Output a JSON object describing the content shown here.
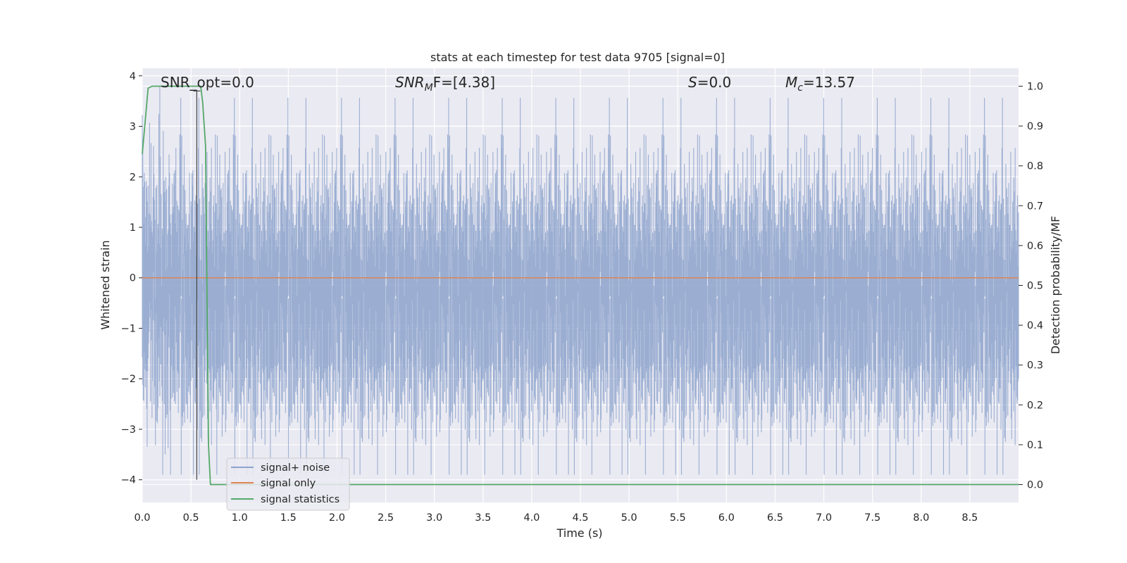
{
  "chart_data": {
    "type": "line",
    "title": "stats at each timestep for test data 9705 [signal=0]",
    "xlabel": "Time (s)",
    "ylabel": "Whitened strain",
    "y2label": "Detection probability/MF",
    "xlim": [
      0,
      9.0
    ],
    "ylim": [
      -4.45,
      4.15
    ],
    "y2lim": [
      -0.045,
      1.045
    ],
    "x_ticks": [
      "0.0",
      "0.5",
      "1.0",
      "1.5",
      "2.0",
      "2.5",
      "3.0",
      "3.5",
      "4.0",
      "4.5",
      "5.0",
      "5.5",
      "6.0",
      "6.5",
      "7.0",
      "7.5",
      "8.0",
      "8.5"
    ],
    "y_ticks": [
      "4",
      "3",
      "2",
      "1",
      "0",
      "−1",
      "−2",
      "−3",
      "−4"
    ],
    "y2_ticks": [
      "1.0",
      "0.9",
      "0.8",
      "0.7",
      "0.6",
      "0.5",
      "0.4",
      "0.3",
      "0.2",
      "0.1",
      "0.0"
    ],
    "grid": true,
    "legend_position": "lower-left",
    "annotations": {
      "snr_opt": "SNR_opt=0.0",
      "snr_mf_prefix": "SNR",
      "snr_mf_sub": "M",
      "snr_mf_suffix": "F=[4.38]",
      "s_prefix": "S",
      "s_suffix": "=0.0",
      "mc_prefix": "M",
      "mc_sub": "c",
      "mc_suffix": "=13.57"
    },
    "marker_line": {
      "x": 0.56,
      "y_top": 3.7,
      "y_bottom": -4.0
    },
    "series": [
      {
        "name": "signal+ noise",
        "color": "#8da3cd",
        "kind": "noise",
        "x_range": [
          0,
          9.0
        ],
        "n_samples": 1800,
        "std": 1.0,
        "envelope": [
          -3.9,
          3.8
        ]
      },
      {
        "name": "signal only",
        "color": "#dd8452",
        "x": [
          0,
          9.0
        ],
        "y": [
          0,
          0
        ]
      },
      {
        "name": "signal statistics",
        "color": "#55a868",
        "axis": "right",
        "x": [
          0.0,
          0.06,
          0.1,
          0.2,
          0.3,
          0.4,
          0.5,
          0.55,
          0.6,
          0.62,
          0.65,
          0.68,
          0.7,
          1.0,
          2.0,
          3.0,
          4.0,
          5.0,
          6.0,
          7.0,
          8.0,
          9.0
        ],
        "y": [
          0.83,
          0.995,
          1.0,
          1.0,
          1.0,
          1.0,
          1.0,
          1.0,
          1.0,
          0.96,
          0.85,
          0.1,
          0.0,
          0.0,
          0.0,
          0.0,
          0.0,
          0.0,
          0.0,
          0.0,
          0.0,
          0.0
        ]
      }
    ]
  }
}
